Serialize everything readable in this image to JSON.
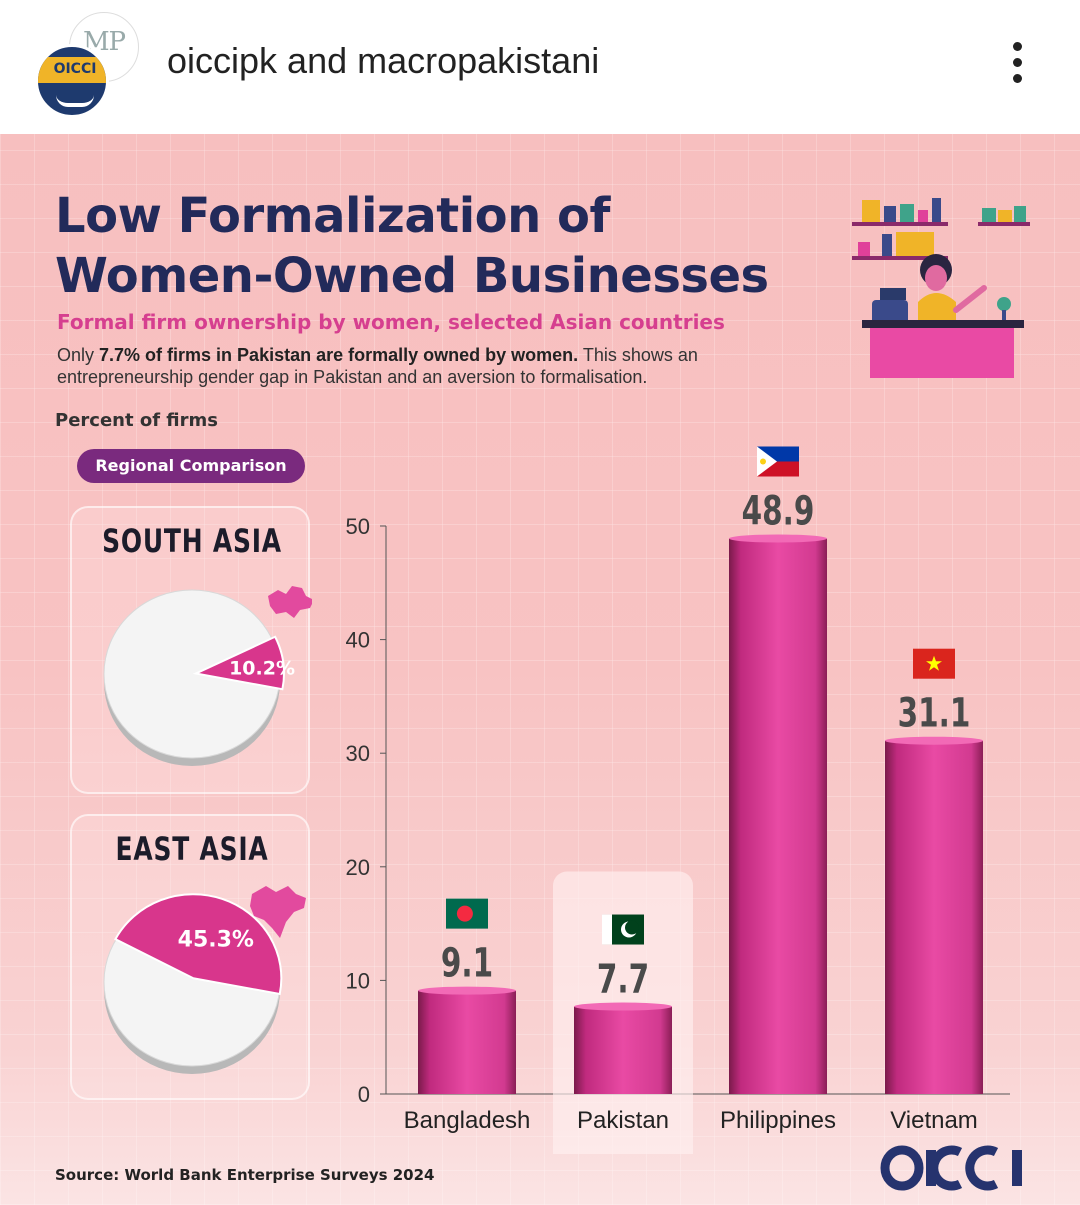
{
  "header": {
    "title": "oiccipk and macropakistani",
    "avatar_mp_text": "MP",
    "avatar_oicci_text": "OICCI",
    "menu_icon": "more-vertical-icon"
  },
  "infographic": {
    "title_line1": "Low Formalization of",
    "title_line2": "Women-Owned Businesses",
    "subtitle": "Formal firm ownership by women, selected Asian countries",
    "desc_bold": "7.7% of firms in Pakistan are formally owned by women.",
    "desc_prefix": "Only ",
    "desc_rest": " This shows an entrepreneurship gender gap in Pakistan and an aversion to formalisation.",
    "ylabel": "Percent of firms",
    "pill": "Regional Comparison",
    "source": "Source: World Bank Enterprise Surveys 2024",
    "logo": "OICCI",
    "colors": {
      "title": "#222a5a",
      "accent": "#d63f8f",
      "bar": "#e0409a",
      "pill": "#7a2a7e"
    }
  },
  "chart_data": [
    {
      "type": "bar",
      "categories": [
        "Bangladesh",
        "Pakistan",
        "Philippines",
        "Vietnam"
      ],
      "values": [
        9.1,
        7.7,
        48.9,
        31.1
      ],
      "value_labels": [
        "9.1",
        "7.7",
        "48.9",
        "31.1"
      ],
      "flags": [
        "bangladesh-flag-icon",
        "pakistan-flag-icon",
        "philippines-flag-icon",
        "vietnam-flag-icon"
      ],
      "highlight": "Pakistan",
      "ylabel": "Percent of firms",
      "ylim": [
        0,
        50
      ],
      "yticks": [
        0,
        10,
        20,
        30,
        40,
        50
      ]
    },
    {
      "type": "pie",
      "title": "SOUTH ASIA",
      "values": [
        10.2,
        89.8
      ],
      "label": "10.2%",
      "map_icon": "south-asia-map-icon"
    },
    {
      "type": "pie",
      "title": "EAST ASIA",
      "values": [
        45.3,
        54.7
      ],
      "label": "45.3%",
      "map_icon": "east-asia-map-icon"
    }
  ]
}
